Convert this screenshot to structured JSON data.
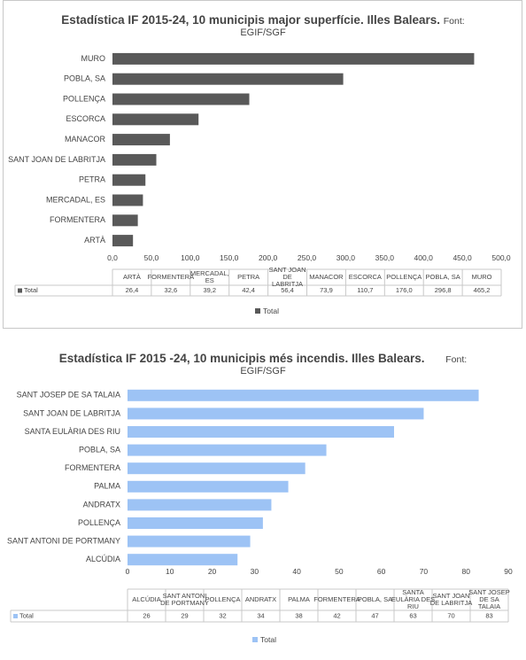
{
  "charts": [
    {
      "title_main": "Estadística IF 2015-24, 10 municipis major superfície. Illes Balears.",
      "title_source_1": "Font:",
      "title_source_2": "EGIF/SGF",
      "color": "#595959"
    },
    {
      "title_main": "Estadística IF 2015 -24, 10 municipis més incendis. Illes Balears.",
      "title_source_1": "Font:",
      "title_source_2": "EGIF/SGF",
      "color": "#9dc3f5"
    }
  ],
  "chart_data": [
    {
      "type": "bar",
      "orientation": "horizontal",
      "title": "Estadística IF 2015-24, 10 municipis major superfície. Illes Balears. Font: EGIF/SGF",
      "categories": [
        "MURO",
        "POBLA, SA",
        "POLLENÇA",
        "ESCORCA",
        "MANACOR",
        "SANT JOAN DE LABRITJA",
        "PETRA",
        "MERCADAL, ES",
        "FORMENTERA",
        "ARTÀ"
      ],
      "series": [
        {
          "name": "Total",
          "values": [
            465.2,
            296.8,
            176.0,
            110.7,
            73.9,
            56.4,
            42.4,
            39.2,
            32.6,
            26.4
          ]
        }
      ],
      "ticks": [
        "0,0",
        "50,0",
        "100,0",
        "150,0",
        "200,0",
        "250,0",
        "300,0",
        "350,0",
        "400,0",
        "450,0",
        "500,0"
      ],
      "xlim": [
        0,
        500
      ],
      "grid": false,
      "legend": "bottom",
      "table": {
        "row_label": "Total",
        "categories": [
          "ARTÀ",
          "FORMENTERA",
          "MERCADAL, ES",
          "PETRA",
          "SANT JOAN DE LABRITJA",
          "MANACOR",
          "ESCORCA",
          "POLLENÇA",
          "POBLA, SA",
          "MURO"
        ],
        "values": [
          "26,4",
          "32,6",
          "39,2",
          "42,4",
          "56,4",
          "73,9",
          "110,7",
          "176,0",
          "296,8",
          "465,2"
        ]
      }
    },
    {
      "type": "bar",
      "orientation": "horizontal",
      "title": "Estadística IF 2015 -24, 10 municipis més incendis. Illes Balears. Font: EGIF/SGF",
      "categories": [
        "SANT JOSEP DE SA TALAIA",
        "SANT JOAN DE LABRITJA",
        "SANTA EULÀRIA DES RIU",
        "POBLA, SA",
        "FORMENTERA",
        "PALMA",
        "ANDRATX",
        "POLLENÇA",
        "SANT ANTONI DE PORTMANY",
        "ALCÚDIA"
      ],
      "series": [
        {
          "name": "Total",
          "values": [
            83,
            70,
            63,
            47,
            42,
            38,
            34,
            32,
            29,
            26
          ]
        }
      ],
      "ticks": [
        "0",
        "10",
        "20",
        "30",
        "40",
        "50",
        "60",
        "70",
        "80",
        "90"
      ],
      "xlim": [
        0,
        90
      ],
      "grid": false,
      "legend": "bottom",
      "table": {
        "row_label": "Total",
        "categories": [
          "ALCÚDIA",
          "SANT ANTONI DE PORTMANY",
          "POLLENÇA",
          "ANDRATX",
          "PALMA",
          "FORMENTERA",
          "POBLA, SA",
          "SANTA EULÀRIA DES RIU",
          "SANT JOAN DE LABRITJA",
          "SANT JOSEP DE SA TALAIA"
        ],
        "values": [
          "26",
          "29",
          "32",
          "34",
          "38",
          "42",
          "47",
          "63",
          "70",
          "83"
        ]
      }
    }
  ]
}
